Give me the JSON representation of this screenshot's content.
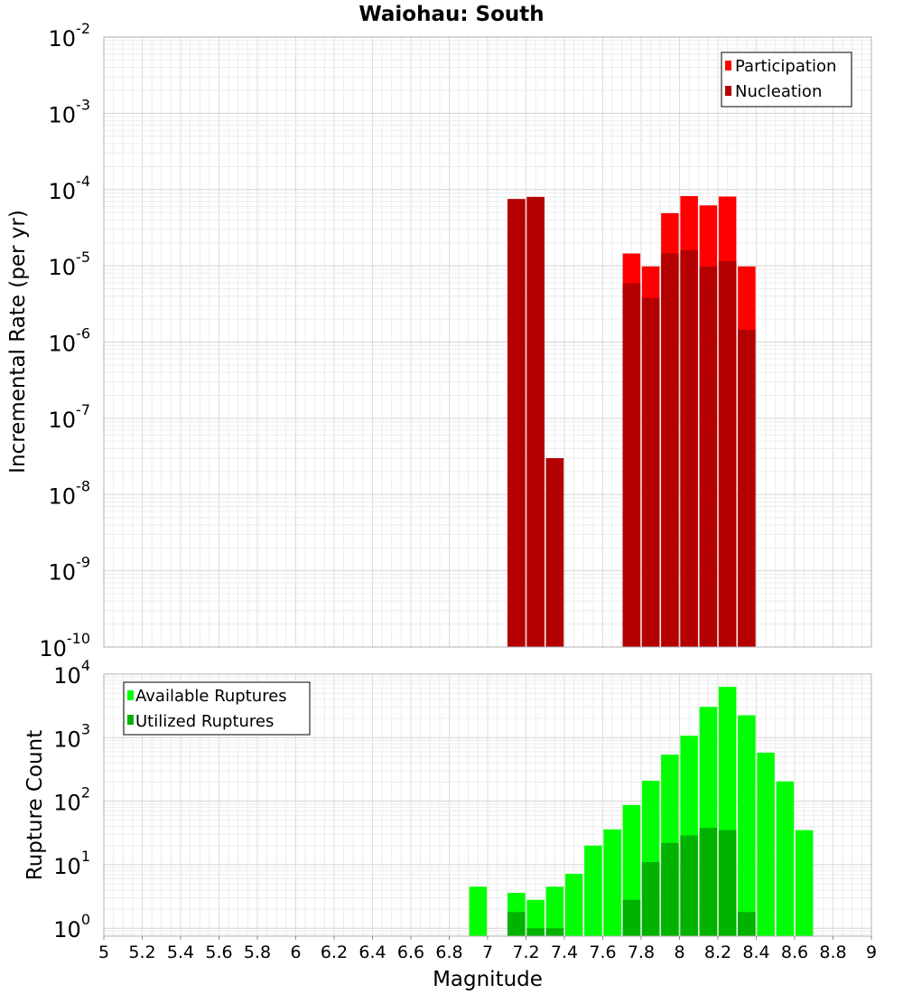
{
  "title": "Waiohau: South",
  "chart_data": [
    {
      "type": "bar",
      "panel": "top",
      "ylabel": "Incremental Rate (per yr)",
      "yscale": "log",
      "ylim": [
        1e-10,
        0.01
      ],
      "xlim": [
        5,
        9
      ],
      "legend_position": "top-right",
      "grid": true,
      "y_ticks": [
        {
          "base": "10",
          "exp": "-10"
        },
        {
          "base": "10",
          "exp": "-9"
        },
        {
          "base": "10",
          "exp": "-8"
        },
        {
          "base": "10",
          "exp": "-7"
        },
        {
          "base": "10",
          "exp": "-6"
        },
        {
          "base": "10",
          "exp": "-5"
        },
        {
          "base": "10",
          "exp": "-4"
        },
        {
          "base": "10",
          "exp": "-3"
        },
        {
          "base": "10",
          "exp": "-2"
        }
      ],
      "series": [
        {
          "name": "Participation",
          "color": "#ff0000",
          "points": [
            {
              "x": 7.15,
              "y": 7.5e-05
            },
            {
              "x": 7.25,
              "y": 8e-05
            },
            {
              "x": 7.35,
              "y": 3e-08
            },
            {
              "x": 7.75,
              "y": 1.45e-05
            },
            {
              "x": 7.85,
              "y": 9.8e-06
            },
            {
              "x": 7.95,
              "y": 4.9e-05
            },
            {
              "x": 8.05,
              "y": 8.2e-05
            },
            {
              "x": 8.15,
              "y": 6.2e-05
            },
            {
              "x": 8.25,
              "y": 8.1e-05
            },
            {
              "x": 8.35,
              "y": 9.8e-06
            }
          ]
        },
        {
          "name": "Nucleation",
          "color": "#b30000",
          "points": [
            {
              "x": 7.15,
              "y": 7.5e-05
            },
            {
              "x": 7.25,
              "y": 8e-05
            },
            {
              "x": 7.35,
              "y": 3e-08
            },
            {
              "x": 7.75,
              "y": 5.9e-06
            },
            {
              "x": 7.85,
              "y": 3.8e-06
            },
            {
              "x": 7.95,
              "y": 1.45e-05
            },
            {
              "x": 8.05,
              "y": 1.6e-05
            },
            {
              "x": 8.15,
              "y": 9.8e-06
            },
            {
              "x": 8.25,
              "y": 1.15e-05
            },
            {
              "x": 8.35,
              "y": 1.45e-06
            }
          ]
        }
      ]
    },
    {
      "type": "bar",
      "panel": "bottom",
      "ylabel": "Rupture Count",
      "xlabel": "Magnitude",
      "yscale": "log",
      "ylim": [
        0.75,
        10000
      ],
      "xlim": [
        5,
        9
      ],
      "legend_position": "top-left",
      "grid": true,
      "y_ticks": [
        {
          "base": "10",
          "exp": "0",
          "value": 1
        },
        {
          "base": "10",
          "exp": "1",
          "value": 10
        },
        {
          "base": "10",
          "exp": "2",
          "value": 100
        },
        {
          "base": "10",
          "exp": "3",
          "value": 1000
        },
        {
          "base": "10",
          "exp": "4",
          "value": 10000
        }
      ],
      "x_ticks": [
        "5",
        "5.2",
        "5.4",
        "5.6",
        "5.8",
        "6",
        "6.2",
        "6.4",
        "6.6",
        "6.8",
        "7",
        "7.2",
        "7.4",
        "7.6",
        "7.8",
        "8",
        "8.2",
        "8.4",
        "8.6",
        "8.8",
        "9"
      ],
      "series": [
        {
          "name": "Available Ruptures",
          "color": "#00ff00",
          "points": [
            {
              "x": 6.95,
              "y": 4.5
            },
            {
              "x": 7.15,
              "y": 3.6
            },
            {
              "x": 7.25,
              "y": 2.8
            },
            {
              "x": 7.35,
              "y": 4.5
            },
            {
              "x": 7.45,
              "y": 7.2
            },
            {
              "x": 7.55,
              "y": 20
            },
            {
              "x": 7.65,
              "y": 36
            },
            {
              "x": 7.75,
              "y": 87
            },
            {
              "x": 7.85,
              "y": 210
            },
            {
              "x": 7.95,
              "y": 540
            },
            {
              "x": 8.05,
              "y": 1070
            },
            {
              "x": 8.15,
              "y": 3050
            },
            {
              "x": 8.25,
              "y": 6300
            },
            {
              "x": 8.35,
              "y": 2250
            },
            {
              "x": 8.45,
              "y": 580
            },
            {
              "x": 8.55,
              "y": 205
            },
            {
              "x": 8.65,
              "y": 35
            }
          ]
        },
        {
          "name": "Utilized Ruptures",
          "color": "#00b300",
          "points": [
            {
              "x": 7.15,
              "y": 1.8
            },
            {
              "x": 7.25,
              "y": 1
            },
            {
              "x": 7.35,
              "y": 1
            },
            {
              "x": 7.75,
              "y": 2.8
            },
            {
              "x": 7.85,
              "y": 11
            },
            {
              "x": 7.95,
              "y": 22
            },
            {
              "x": 8.05,
              "y": 29
            },
            {
              "x": 8.15,
              "y": 38
            },
            {
              "x": 8.25,
              "y": 35
            },
            {
              "x": 8.35,
              "y": 1.8
            }
          ]
        }
      ]
    }
  ]
}
